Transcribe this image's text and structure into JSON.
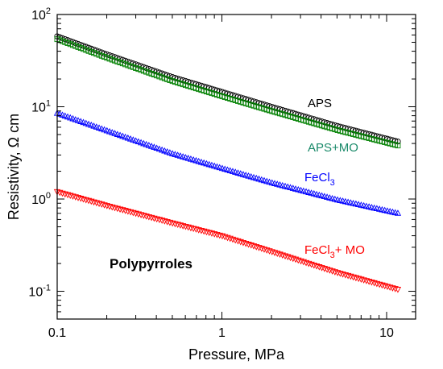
{
  "chart_data": {
    "type": "scatter",
    "title": "",
    "xlabel": "Pressure, MPa",
    "ylabel": "Resistivity, Ω cm",
    "xscale": "log",
    "yscale": "log",
    "xlim": [
      0.1,
      15
    ],
    "ylim": [
      0.05,
      100
    ],
    "x_ticks": [
      {
        "value": 0.1,
        "label": "0.1"
      },
      {
        "value": 1,
        "label": "1"
      },
      {
        "value": 10,
        "label": "10"
      }
    ],
    "y_ticks": [
      {
        "value": 0.1,
        "base": "10",
        "exp": "-1"
      },
      {
        "value": 1,
        "base": "10",
        "exp": "0"
      },
      {
        "value": 10,
        "base": "10",
        "exp": "1"
      },
      {
        "value": 100,
        "base": "10",
        "exp": "2"
      }
    ],
    "grid": false,
    "annotation": "Polypyrroles",
    "series": [
      {
        "name": "APS",
        "label_parts": [
          {
            "text": "APS",
            "sub": false
          }
        ],
        "color": "#000000",
        "marker": "circle",
        "x": [
          0.1,
          0.2,
          0.5,
          1,
          2,
          5,
          11.7
        ],
        "y": [
          58,
          37,
          21,
          14.5,
          10,
          6.2,
          4.2
        ]
      },
      {
        "name": "APS+MO",
        "label_parts": [
          {
            "text": "APS+MO",
            "sub": false
          }
        ],
        "color": "#008000",
        "label_color": "#1a8a6a",
        "marker": "square",
        "x": [
          0.1,
          0.2,
          0.5,
          1,
          2,
          5,
          11.7
        ],
        "y": [
          54,
          34,
          19,
          13,
          9,
          5.6,
          3.8
        ]
      },
      {
        "name": "FeCl3",
        "label_parts": [
          {
            "text": "FeCl",
            "sub": false
          },
          {
            "text": "3",
            "sub": true
          }
        ],
        "color": "#0000ff",
        "marker": "triangle-up",
        "x": [
          0.1,
          0.2,
          0.5,
          1,
          2,
          5,
          11.7
        ],
        "y": [
          8.5,
          5.5,
          3.1,
          2.15,
          1.5,
          0.98,
          0.7
        ]
      },
      {
        "name": "FeCl3+ MO",
        "label_parts": [
          {
            "text": "FeCl",
            "sub": false
          },
          {
            "text": "3",
            "sub": true
          },
          {
            "text": "+ MO",
            "sub": false
          }
        ],
        "color": "#ff0000",
        "marker": "triangle-down",
        "x": [
          0.1,
          0.2,
          0.5,
          1,
          2,
          5,
          11.7
        ],
        "y": [
          1.2,
          0.85,
          0.55,
          0.4,
          0.27,
          0.16,
          0.105
        ]
      }
    ]
  }
}
